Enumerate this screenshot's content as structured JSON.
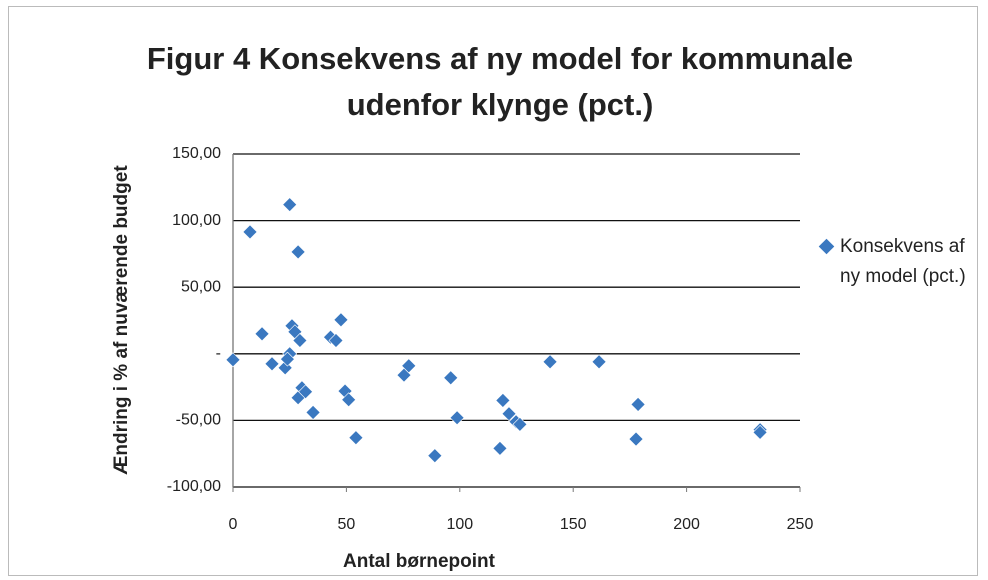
{
  "chart_data": {
    "type": "scatter",
    "title": "Figur 4 Konsekvens af ny model for kommunale udenfor klynge (pct.)",
    "x_label": "Antal børnepoint",
    "y_label": "Ændring i % af nuværende budget",
    "xlim": [
      0,
      250
    ],
    "xticks": [
      0,
      50,
      100,
      150,
      200,
      250
    ],
    "ylim": [
      -100,
      150
    ],
    "yticks": [
      {
        "value": -100,
        "label": "-100,00"
      },
      {
        "value": -50,
        "label": "-50,00"
      },
      {
        "value": 0,
        "label": "-"
      },
      {
        "value": 50,
        "label": "50,00"
      },
      {
        "value": 100,
        "label": "100,00"
      },
      {
        "value": 150,
        "label": "150,00"
      }
    ],
    "grid": true,
    "legend": "right",
    "series": [
      {
        "name": "Konsekvens af ny model (pct.)",
        "color": "#3a78c0",
        "x": [
          0,
          7.5,
          12.8,
          17.2,
          23,
          25,
          26,
          27.3,
          28.7,
          29.5,
          25,
          24,
          28.7,
          30.4,
          32,
          35.3,
          43,
          45.4,
          47.6,
          49.4,
          51,
          54.2,
          75.4,
          77.5,
          89,
          96,
          98.8,
          117.7,
          119,
          121.7,
          124.8,
          126.5,
          139.8,
          161.4,
          177.7,
          178.6,
          232.4,
          232.4
        ],
        "values": [
          -4.5,
          91.5,
          15,
          -7.5,
          -10.5,
          112,
          21,
          16.5,
          76.5,
          10,
          0,
          -4,
          -33,
          -25.5,
          -28.5,
          -44,
          12.5,
          10,
          25.5,
          -28,
          -34.5,
          -63,
          -16,
          -9,
          -76.5,
          -18,
          -48,
          -71,
          -35,
          -45,
          -51,
          -53,
          -6,
          -6,
          -64,
          -38,
          -57,
          -59
        ]
      }
    ]
  }
}
